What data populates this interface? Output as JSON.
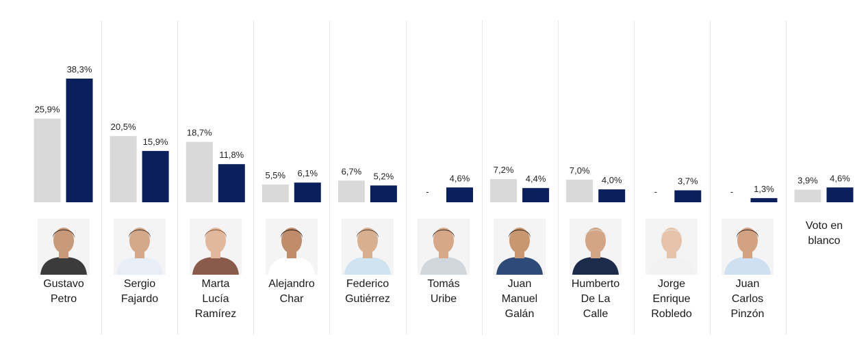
{
  "chart_data": {
    "type": "bar",
    "categories": [
      "Gustavo Petro",
      "Sergio Fajardo",
      "Marta Lucía Ramírez",
      "Alejandro Char",
      "Federico Gutiérrez",
      "Tomás Uribe",
      "Juan Manuel Galán",
      "Humberto De La Calle",
      "Jorge Enrique Robledo",
      "Juan Carlos Pinzón",
      "Voto en blanco"
    ],
    "category_lines": [
      [
        "Gustavo",
        "Petro"
      ],
      [
        "Sergio",
        "Fajardo"
      ],
      [
        "Marta",
        "Lucía",
        "Ramírez"
      ],
      [
        "Alejandro",
        "Char"
      ],
      [
        "Federico",
        "Gutiérrez"
      ],
      [
        "Tomás",
        "Uribe"
      ],
      [
        "Juan",
        "Manuel",
        "Galán"
      ],
      [
        "Humberto",
        "De La",
        "Calle"
      ],
      [
        "Jorge",
        "Enrique",
        "Robledo"
      ],
      [
        "Juan",
        "Carlos",
        "Pinzón"
      ],
      [
        "Voto en",
        "blanco"
      ]
    ],
    "series": [
      {
        "color": "#d9d9d9",
        "values": [
          25.9,
          20.5,
          18.7,
          5.5,
          6.7,
          null,
          7.2,
          7.0,
          null,
          null,
          3.9
        ],
        "labels": [
          "25,9%",
          "20,5%",
          "18,7%",
          "5,5%",
          "6,7%",
          "-",
          "7,2%",
          "7,0%",
          "-",
          "-",
          "3,9%"
        ]
      },
      {
        "color": "#0b1f5c",
        "values": [
          38.3,
          15.9,
          11.8,
          6.1,
          5.2,
          4.6,
          4.4,
          4.0,
          3.7,
          1.3,
          4.6
        ],
        "labels": [
          "38,3%",
          "15,9%",
          "11,8%",
          "6,1%",
          "5,2%",
          "4,6%",
          "4,4%",
          "4,0%",
          "3,7%",
          "1,3%",
          "4,6%"
        ]
      }
    ],
    "ylim": [
      0,
      38.3
    ],
    "grid": false,
    "legend": "none",
    "photo_icons": [
      "person-photo-icon",
      "person-photo-icon",
      "person-photo-icon",
      "person-photo-icon",
      "person-photo-icon",
      "person-photo-icon",
      "person-photo-icon",
      "person-photo-icon",
      "person-photo-icon",
      "person-photo-icon"
    ]
  }
}
